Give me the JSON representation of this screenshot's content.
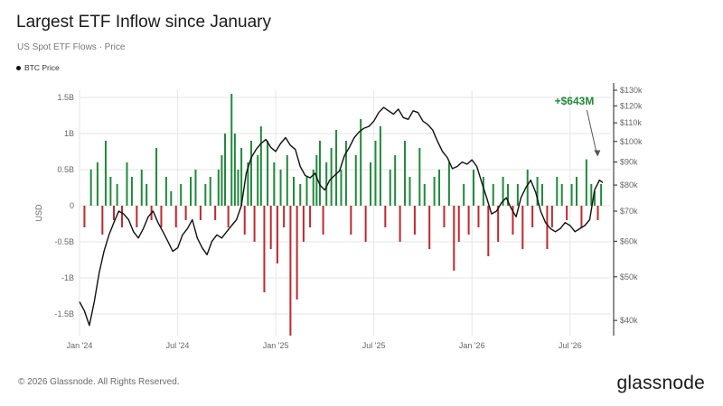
{
  "header": {
    "title": "Largest ETF Inflow since January",
    "subtitle": "US Spot ETF Flows · Price"
  },
  "legend": {
    "btc_label": "BTC Price"
  },
  "footer": {
    "copyright": "© 2026 Glassnode. All Rights Reserved.",
    "brand": "glassnode"
  },
  "colors": {
    "inflow": "#1f8a3a",
    "outflow": "#c0282d",
    "price": "#111111",
    "annotation": "#1f8a3a",
    "grid": "#e6e6e6"
  },
  "chart_data": {
    "type": "bar",
    "title": "Largest ETF Inflow since January",
    "ylabel": "USD",
    "ylim": [
      -1.8,
      1.6
    ],
    "y2lim": [
      37000,
      130000
    ],
    "y2scale": "log",
    "yticks": [
      {
        "v": 1.5,
        "label": "1.5B"
      },
      {
        "v": 1,
        "label": "1B"
      },
      {
        "v": 0.5,
        "label": "0.5B"
      },
      {
        "v": 0,
        "label": "0"
      },
      {
        "v": -0.5,
        "label": "-0.5B"
      },
      {
        "v": -1,
        "label": "-1B"
      },
      {
        "v": -1.5,
        "label": "-1.5B"
      }
    ],
    "y2ticks": [
      {
        "v": 130000,
        "label": "$130k"
      },
      {
        "v": 120000,
        "label": "$120k"
      },
      {
        "v": 110000,
        "label": "$110k"
      },
      {
        "v": 100000,
        "label": "$100k"
      },
      {
        "v": 90000,
        "label": "$90k"
      },
      {
        "v": 80000,
        "label": "$80k"
      },
      {
        "v": 70000,
        "label": "$70k"
      },
      {
        "v": 60000,
        "label": "$60k"
      },
      {
        "v": 50000,
        "label": "$50k"
      },
      {
        "v": 40000,
        "label": "$40k"
      }
    ],
    "xlim": [
      0,
      32.5
    ],
    "xticks": [
      {
        "v": 0,
        "label": "Jan '24"
      },
      {
        "v": 6,
        "label": "Jul '24"
      },
      {
        "v": 12,
        "label": "Jan '25"
      },
      {
        "v": 18,
        "label": "Jul '25"
      },
      {
        "v": 24,
        "label": "Jan '26"
      },
      {
        "v": 30,
        "label": "Jul '26"
      }
    ],
    "annotation": {
      "text": "+$643M",
      "x": 31.8,
      "value": 0.643
    },
    "series": [
      {
        "name": "US Spot ETF Flows",
        "type": "bar",
        "x": [
          0.3,
          0.7,
          1.1,
          1.4,
          1.6,
          1.9,
          2.1,
          2.3,
          2.6,
          2.9,
          3.2,
          3.5,
          3.8,
          4.1,
          4.4,
          4.7,
          5.0,
          5.3,
          5.6,
          5.9,
          6.2,
          6.5,
          6.8,
          7.1,
          7.4,
          7.7,
          8.0,
          8.3,
          8.5,
          8.7,
          8.9,
          9.1,
          9.3,
          9.5,
          9.7,
          9.9,
          10.1,
          10.3,
          10.5,
          10.7,
          10.9,
          11.1,
          11.3,
          11.5,
          11.7,
          11.9,
          12.1,
          12.3,
          12.5,
          12.7,
          12.9,
          13.1,
          13.3,
          13.5,
          13.7,
          13.9,
          14.1,
          14.3,
          14.5,
          14.7,
          14.9,
          15.1,
          15.4,
          15.7,
          16.0,
          16.3,
          16.6,
          16.9,
          17.2,
          17.5,
          17.8,
          18.1,
          18.4,
          18.7,
          19.0,
          19.3,
          19.6,
          19.9,
          20.2,
          20.5,
          20.8,
          21.1,
          21.4,
          21.7,
          22.0,
          22.3,
          22.6,
          22.9,
          23.2,
          23.5,
          23.8,
          24.1,
          24.4,
          24.7,
          25.0,
          25.3,
          25.6,
          25.9,
          26.2,
          26.5,
          26.8,
          27.1,
          27.4,
          27.7,
          28.0,
          28.3,
          28.6,
          28.9,
          29.2,
          29.5,
          29.8,
          30.1,
          30.4,
          30.7,
          31.0,
          31.3,
          31.5,
          31.7,
          31.9
        ],
        "values": [
          -0.3,
          0.5,
          0.6,
          -0.4,
          0.9,
          0.4,
          -0.2,
          0.3,
          -0.3,
          0.6,
          0.4,
          -0.3,
          0.5,
          0.3,
          -0.2,
          0.8,
          -0.3,
          0.4,
          0.2,
          -0.3,
          0.3,
          -0.2,
          0.4,
          0.5,
          -0.2,
          0.3,
          0.4,
          -0.2,
          0.5,
          0.7,
          1.0,
          -0.3,
          1.55,
          1.0,
          0.5,
          0.8,
          -0.4,
          0.6,
          0.9,
          -0.5,
          0.7,
          1.1,
          -1.2,
          0.9,
          -0.6,
          0.6,
          -0.8,
          0.5,
          -0.3,
          0.7,
          -1.8,
          0.4,
          -1.3,
          0.3,
          -0.5,
          0.4,
          -0.3,
          0.5,
          0.7,
          0.9,
          -0.4,
          0.6,
          0.8,
          1.05,
          0.5,
          0.9,
          -0.4,
          0.7,
          1.2,
          -0.5,
          0.6,
          0.9,
          1.1,
          -0.3,
          0.5,
          0.7,
          -0.5,
          0.9,
          0.4,
          -0.4,
          0.8,
          0.3,
          -0.6,
          0.4,
          0.5,
          -0.3,
          0.6,
          -0.9,
          -0.5,
          0.3,
          -0.4,
          0.5,
          -0.3,
          0.4,
          -0.7,
          0.3,
          -0.5,
          0.4,
          0.3,
          -0.4,
          0.3,
          -0.6,
          0.5,
          -0.3,
          0.4,
          0.3,
          -0.6,
          -0.3,
          0.4,
          0.3,
          -0.2,
          0.3,
          0.4,
          -0.3,
          0.643,
          0.3,
          0.2,
          -0.2,
          0.3
        ]
      },
      {
        "name": "BTC Price",
        "type": "line",
        "x": [
          0,
          0.3,
          0.6,
          0.9,
          1.2,
          1.5,
          1.8,
          2.1,
          2.4,
          2.7,
          3.0,
          3.3,
          3.6,
          3.9,
          4.2,
          4.5,
          4.8,
          5.1,
          5.4,
          5.7,
          6.0,
          6.3,
          6.6,
          6.9,
          7.2,
          7.5,
          7.8,
          8.1,
          8.4,
          8.7,
          9.0,
          9.3,
          9.6,
          9.9,
          10.2,
          10.5,
          10.8,
          11.1,
          11.4,
          11.7,
          12.0,
          12.3,
          12.6,
          12.9,
          13.2,
          13.5,
          13.8,
          14.1,
          14.4,
          14.7,
          15.0,
          15.3,
          15.6,
          15.9,
          16.2,
          16.5,
          16.8,
          17.1,
          17.4,
          17.7,
          18.0,
          18.3,
          18.6,
          18.9,
          19.2,
          19.5,
          19.8,
          20.1,
          20.4,
          20.7,
          21.0,
          21.3,
          21.6,
          21.9,
          22.2,
          22.5,
          22.8,
          23.1,
          23.4,
          23.7,
          24.0,
          24.3,
          24.6,
          24.9,
          25.2,
          25.5,
          25.8,
          26.1,
          26.4,
          26.7,
          27.0,
          27.3,
          27.6,
          27.9,
          28.2,
          28.5,
          28.8,
          29.1,
          29.4,
          29.7,
          30.0,
          30.3,
          30.6,
          30.9,
          31.2,
          31.5,
          31.8,
          32.0
        ],
        "values": [
          44000,
          42000,
          39000,
          44000,
          51000,
          57000,
          62000,
          66000,
          70000,
          69000,
          67000,
          63000,
          61000,
          64000,
          68000,
          70000,
          66000,
          63000,
          60000,
          57000,
          58000,
          62000,
          64000,
          67000,
          61000,
          58000,
          56000,
          60000,
          62000,
          61000,
          63000,
          65000,
          67000,
          72000,
          85000,
          92000,
          96000,
          99000,
          101000,
          97000,
          95000,
          99000,
          102000,
          98000,
          96000,
          88000,
          84000,
          83000,
          85000,
          80000,
          78000,
          82000,
          84000,
          86000,
          93000,
          97000,
          102000,
          105000,
          107000,
          108000,
          111000,
          116000,
          119000,
          117000,
          115000,
          118000,
          113000,
          112000,
          117000,
          116000,
          111000,
          109000,
          106000,
          100000,
          95000,
          92000,
          87000,
          88000,
          90000,
          89000,
          91000,
          88000,
          81000,
          75000,
          69000,
          70000,
          73000,
          75000,
          71000,
          68000,
          75000,
          79000,
          82000,
          77000,
          70000,
          66000,
          64000,
          63000,
          64000,
          66000,
          65000,
          63000,
          64000,
          65000,
          67000,
          78000,
          82000,
          81000
        ]
      }
    ]
  }
}
